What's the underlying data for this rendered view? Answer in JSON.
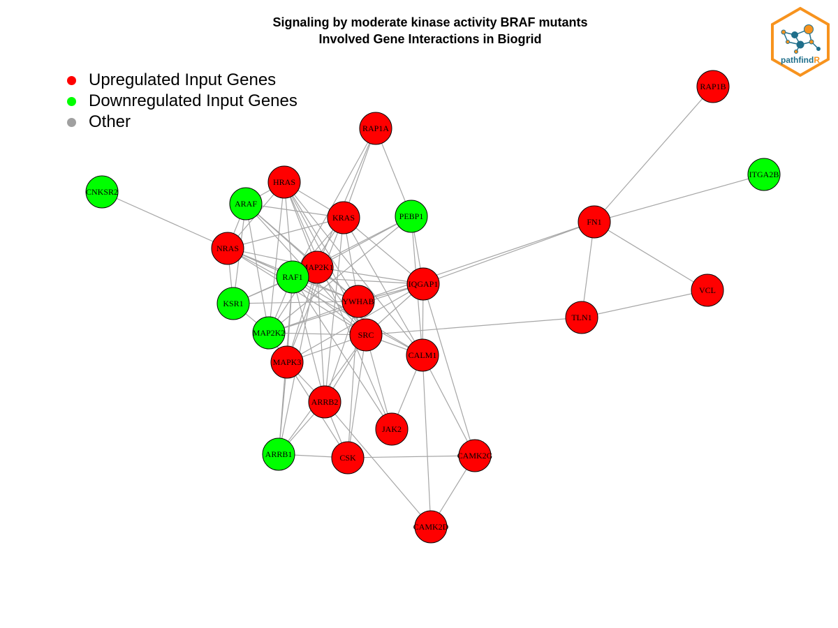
{
  "title": {
    "line1": "Signaling by moderate kinase activity BRAF mutants",
    "line2": "Involved Gene Interactions in Biogrid"
  },
  "legend": [
    {
      "label": "Upregulated Input Genes",
      "color": "#ff0000"
    },
    {
      "label": "Downregulated Input Genes",
      "color": "#00ff00"
    },
    {
      "label": "Other",
      "color": "#a0a0a0"
    }
  ],
  "colors": {
    "up": "#ff0000",
    "down": "#00ff00",
    "edge": "#a6a6a6",
    "logo_orange": "#f7931e",
    "logo_blue": "#1f6f8b"
  },
  "logo": {
    "text_main": "pathfind",
    "text_accent": "R"
  },
  "nodes": [
    {
      "id": "RAP1B",
      "label": "RAP1B",
      "group": "up"
    },
    {
      "id": "ITGA2B",
      "label": "ITGA2B",
      "group": "down"
    },
    {
      "id": "RAP1A",
      "label": "RAP1A",
      "group": "up"
    },
    {
      "id": "CNKSR2",
      "label": "CNKSR2",
      "group": "down"
    },
    {
      "id": "HRAS",
      "label": "HRAS",
      "group": "up"
    },
    {
      "id": "ARAF",
      "label": "ARAF",
      "group": "down"
    },
    {
      "id": "KRAS",
      "label": "KRAS",
      "group": "up"
    },
    {
      "id": "PEBP1",
      "label": "PEBP1",
      "group": "down"
    },
    {
      "id": "FN1",
      "label": "FN1",
      "group": "up"
    },
    {
      "id": "NRAS",
      "label": "NRAS",
      "group": "up"
    },
    {
      "id": "MAP2K1",
      "label": "MAP2K1",
      "group": "up"
    },
    {
      "id": "RAF1",
      "label": "RAF1",
      "group": "down"
    },
    {
      "id": "IQGAP1",
      "label": "IQGAP1",
      "group": "up"
    },
    {
      "id": "VCL",
      "label": "VCL",
      "group": "up"
    },
    {
      "id": "KSR1",
      "label": "KSR1",
      "group": "down"
    },
    {
      "id": "YWHAB",
      "label": "YWHAB",
      "group": "up"
    },
    {
      "id": "TLN1",
      "label": "TLN1",
      "group": "up"
    },
    {
      "id": "MAP2K2",
      "label": "MAP2K2",
      "group": "down"
    },
    {
      "id": "SRC",
      "label": "SRC",
      "group": "up"
    },
    {
      "id": "CALM1",
      "label": "CALM1",
      "group": "up"
    },
    {
      "id": "MAPK3",
      "label": "MAPK3",
      "group": "up"
    },
    {
      "id": "ARRB2",
      "label": "ARRB2",
      "group": "up"
    },
    {
      "id": "JAK2",
      "label": "JAK2",
      "group": "up"
    },
    {
      "id": "ARRB1",
      "label": "ARRB1",
      "group": "down"
    },
    {
      "id": "CSK",
      "label": "CSK",
      "group": "up"
    },
    {
      "id": "CAMK2G",
      "label": "CAMK2G",
      "group": "up"
    },
    {
      "id": "CAMK2D",
      "label": "CAMK2D",
      "group": "up"
    }
  ],
  "edges": [
    [
      "RAP1B",
      "FN1"
    ],
    [
      "ITGA2B",
      "FN1"
    ],
    [
      "FN1",
      "VCL"
    ],
    [
      "FN1",
      "TLN1"
    ],
    [
      "TLN1",
      "VCL"
    ],
    [
      "FN1",
      "IQGAP1"
    ],
    [
      "FN1",
      "YWHAB"
    ],
    [
      "TLN1",
      "SRC"
    ],
    [
      "CNKSR2",
      "RAF1"
    ],
    [
      "RAP1A",
      "KRAS"
    ],
    [
      "RAP1A",
      "PEBP1"
    ],
    [
      "RAP1A",
      "MAP2K1"
    ],
    [
      "RAP1A",
      "RAF1"
    ],
    [
      "HRAS",
      "ARAF"
    ],
    [
      "HRAS",
      "KRAS"
    ],
    [
      "HRAS",
      "NRAS"
    ],
    [
      "HRAS",
      "RAF1"
    ],
    [
      "HRAS",
      "MAP2K1"
    ],
    [
      "HRAS",
      "YWHAB"
    ],
    [
      "HRAS",
      "SRC"
    ],
    [
      "HRAS",
      "CALM1"
    ],
    [
      "HRAS",
      "MAP2K2"
    ],
    [
      "HRAS",
      "JAK2"
    ],
    [
      "ARAF",
      "KRAS"
    ],
    [
      "ARAF",
      "NRAS"
    ],
    [
      "ARAF",
      "MAP2K1"
    ],
    [
      "ARAF",
      "YWHAB"
    ],
    [
      "ARAF",
      "KSR1"
    ],
    [
      "ARAF",
      "MAP2K2"
    ],
    [
      "ARAF",
      "SRC"
    ],
    [
      "KRAS",
      "NRAS"
    ],
    [
      "KRAS",
      "RAF1"
    ],
    [
      "KRAS",
      "YWHAB"
    ],
    [
      "KRAS",
      "IQGAP1"
    ],
    [
      "KRAS",
      "CALM1"
    ],
    [
      "KRAS",
      "MAP2K2"
    ],
    [
      "KRAS",
      "MAPK3"
    ],
    [
      "KRAS",
      "ARRB2"
    ],
    [
      "PEBP1",
      "RAF1"
    ],
    [
      "PEBP1",
      "MAP2K1"
    ],
    [
      "PEBP1",
      "CALM1"
    ],
    [
      "PEBP1",
      "IQGAP1"
    ],
    [
      "PEBP1",
      "MAP2K2"
    ],
    [
      "NRAS",
      "RAF1"
    ],
    [
      "NRAS",
      "MAP2K1"
    ],
    [
      "NRAS",
      "YWHAB"
    ],
    [
      "NRAS",
      "SRC"
    ],
    [
      "NRAS",
      "CALM1"
    ],
    [
      "NRAS",
      "KSR1"
    ],
    [
      "MAP2K1",
      "RAF1"
    ],
    [
      "MAP2K1",
      "KSR1"
    ],
    [
      "MAP2K1",
      "IQGAP1"
    ],
    [
      "MAP2K1",
      "MAPK3"
    ],
    [
      "MAP2K1",
      "ARRB2"
    ],
    [
      "MAP2K1",
      "ARRB1"
    ],
    [
      "MAP2K1",
      "YWHAB"
    ],
    [
      "MAP2K1",
      "SRC"
    ],
    [
      "RAF1",
      "KSR1"
    ],
    [
      "RAF1",
      "MAP2K2"
    ],
    [
      "RAF1",
      "YWHAB"
    ],
    [
      "RAF1",
      "SRC"
    ],
    [
      "RAF1",
      "IQGAP1"
    ],
    [
      "RAF1",
      "MAPK3"
    ],
    [
      "RAF1",
      "ARRB2"
    ],
    [
      "RAF1",
      "JAK2"
    ],
    [
      "RAF1",
      "CALM1"
    ],
    [
      "RAF1",
      "ARRB1"
    ],
    [
      "IQGAP1",
      "YWHAB"
    ],
    [
      "IQGAP1",
      "MAP2K2"
    ],
    [
      "IQGAP1",
      "CALM1"
    ],
    [
      "IQGAP1",
      "SRC"
    ],
    [
      "IQGAP1",
      "MAPK3"
    ],
    [
      "IQGAP1",
      "CAMK2G"
    ],
    [
      "KSR1",
      "MAP2K2"
    ],
    [
      "KSR1",
      "YWHAB"
    ],
    [
      "YWHAB",
      "MAP2K2"
    ],
    [
      "YWHAB",
      "SRC"
    ],
    [
      "YWHAB",
      "CSK"
    ],
    [
      "YWHAB",
      "ARRB2"
    ],
    [
      "MAP2K2",
      "SRC"
    ],
    [
      "MAP2K2",
      "MAPK3"
    ],
    [
      "SRC",
      "CALM1"
    ],
    [
      "SRC",
      "MAPK3"
    ],
    [
      "SRC",
      "ARRB2"
    ],
    [
      "SRC",
      "ARRB1"
    ],
    [
      "SRC",
      "CSK"
    ],
    [
      "SRC",
      "JAK2"
    ],
    [
      "CALM1",
      "JAK2"
    ],
    [
      "CALM1",
      "CAMK2G"
    ],
    [
      "CALM1",
      "CAMK2D"
    ],
    [
      "MAPK3",
      "ARRB2"
    ],
    [
      "MAPK3",
      "ARRB1"
    ],
    [
      "MAPK3",
      "CSK"
    ],
    [
      "ARRB2",
      "ARRB1"
    ],
    [
      "ARRB2",
      "CSK"
    ],
    [
      "ARRB2",
      "CAMK2D"
    ],
    [
      "ARRB1",
      "CSK"
    ],
    [
      "CSK",
      "CAMK2G"
    ],
    [
      "CAMK2G",
      "CAMK2D"
    ]
  ]
}
